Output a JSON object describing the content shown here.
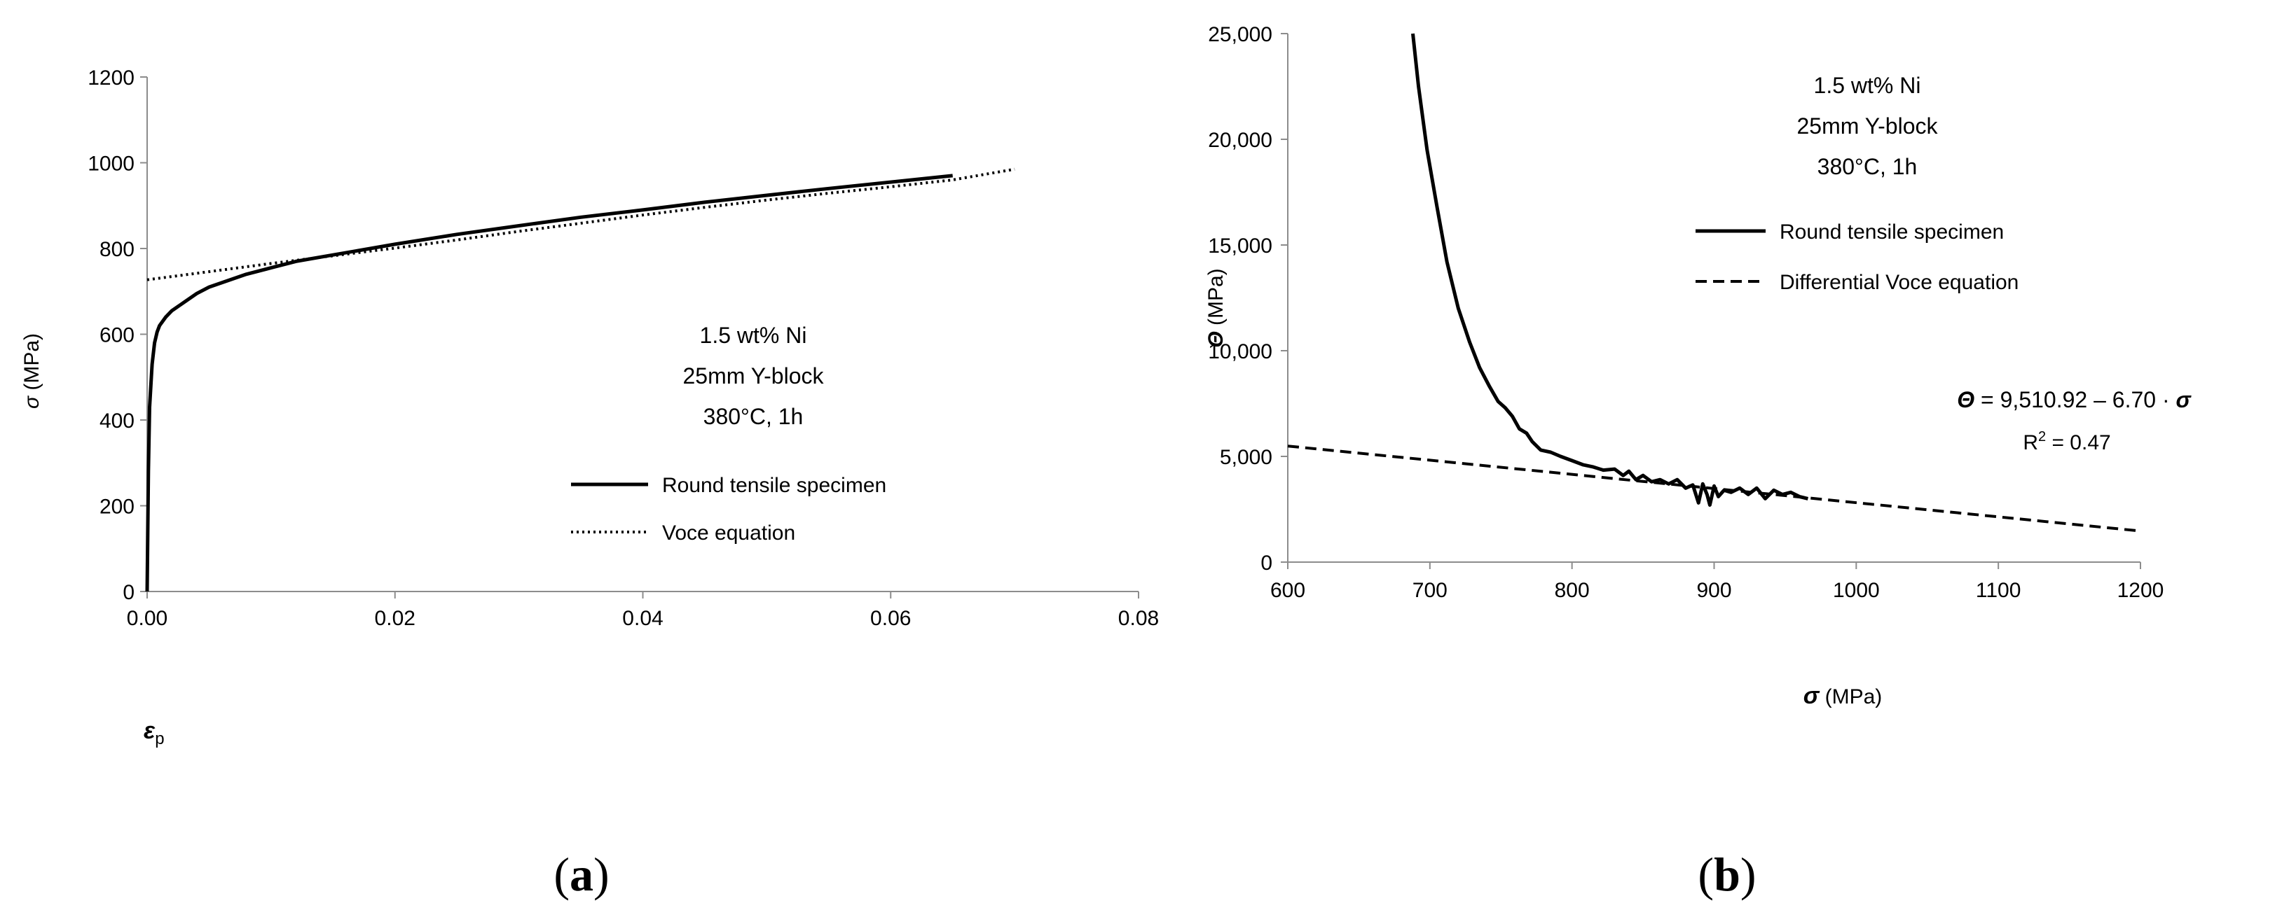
{
  "chart_data": [
    {
      "type": "line",
      "panel_label_open": "(",
      "panel_label_letter": "a",
      "panel_label_close": ")",
      "xlabel_symbol": "ε",
      "xlabel_sub": "p",
      "ylabel_symbol": "σ",
      "ylabel_unit": " (MPa)",
      "xlim": [
        0,
        0.08
      ],
      "ylim": [
        0,
        1200
      ],
      "x_ticks": [
        0,
        0.02,
        0.04,
        0.06,
        0.08
      ],
      "x_tick_labels": [
        "0.00",
        "0.02",
        "0.04",
        "0.06",
        "0.08"
      ],
      "y_ticks": [
        0,
        200,
        400,
        600,
        800,
        1000,
        1200
      ],
      "y_tick_labels": [
        "0",
        "200",
        "400",
        "600",
        "800",
        "1000",
        "1200"
      ],
      "grid": false,
      "annotation": [
        "1.5 wt% Ni",
        "25mm Y-block",
        "380°C, 1h"
      ],
      "legend_position": "bottom-right",
      "series": [
        {
          "name": "Round tensile specimen",
          "style": "solid",
          "x": [
            0,
            0.0001,
            0.0002,
            0.0004,
            0.0006,
            0.0008,
            0.001,
            0.0015,
            0.002,
            0.003,
            0.004,
            0.005,
            0.006,
            0.007,
            0.008,
            0.01,
            0.012,
            0.015,
            0.02,
            0.025,
            0.03,
            0.035,
            0.04,
            0.045,
            0.05,
            0.055,
            0.06,
            0.065
          ],
          "y": [
            0,
            280,
            430,
            530,
            580,
            605,
            620,
            640,
            655,
            675,
            695,
            710,
            720,
            730,
            740,
            755,
            770,
            785,
            810,
            833,
            853,
            873,
            890,
            908,
            924,
            940,
            955,
            970
          ]
        },
        {
          "name": "Voce equation",
          "style": "dotted",
          "x": [
            0,
            0.005,
            0.01,
            0.015,
            0.02,
            0.025,
            0.03,
            0.035,
            0.04,
            0.045,
            0.05,
            0.055,
            0.06,
            0.065,
            0.07
          ],
          "y": [
            727,
            746,
            765,
            783,
            801,
            820,
            840,
            859,
            878,
            896,
            913,
            929,
            944,
            960,
            985
          ]
        }
      ]
    },
    {
      "type": "line",
      "panel_label_open": "(",
      "panel_label_letter": "b",
      "panel_label_close": ")",
      "xlabel_symbol": "σ",
      "xlabel_unit": " (MPa)",
      "ylabel_symbol": "Θ",
      "ylabel_unit": " (MPa)",
      "xlim": [
        600,
        1200
      ],
      "ylim": [
        0,
        25000
      ],
      "x_ticks": [
        600,
        700,
        800,
        900,
        1000,
        1100,
        1200
      ],
      "x_tick_labels": [
        "600",
        "700",
        "800",
        "900",
        "1000",
        "1100",
        "1200"
      ],
      "y_ticks": [
        0,
        5000,
        10000,
        15000,
        20000,
        25000
      ],
      "y_tick_labels": [
        "0",
        "5,000",
        "10,000",
        "15,000",
        "20,000",
        "25,000"
      ],
      "grid": false,
      "annotation": [
        "1.5 wt% Ni",
        "25mm Y-block",
        "380°C, 1h"
      ],
      "equation_symbol": "Θ",
      "equation_text": " = 9,510.92 – 6.70 · ",
      "equation_var": "σ",
      "r2_text": "R",
      "r2_sup": "2",
      "r2_value": " = 0.47",
      "legend_position": "top-right",
      "series": [
        {
          "name": "Round tensile specimen",
          "style": "solid",
          "x": [
            688,
            692,
            698,
            705,
            712,
            720,
            728,
            735,
            742,
            748,
            753,
            758,
            763,
            768,
            772,
            778,
            785,
            792,
            800,
            808,
            815,
            822,
            830,
            836,
            840,
            845,
            850,
            856,
            862,
            868,
            874,
            880,
            885,
            889,
            892,
            895,
            897,
            900,
            903,
            907,
            912,
            918,
            924,
            930,
            936,
            942,
            948,
            954,
            960,
            966
          ],
          "y": [
            25000,
            22500,
            19500,
            16800,
            14200,
            12000,
            10400,
            9200,
            8300,
            7600,
            7300,
            6900,
            6300,
            6100,
            5700,
            5300,
            5200,
            5000,
            4800,
            4600,
            4500,
            4350,
            4400,
            4100,
            4300,
            3900,
            4100,
            3800,
            3900,
            3700,
            3900,
            3500,
            3650,
            2800,
            3700,
            3200,
            2700,
            3600,
            3100,
            3400,
            3300,
            3500,
            3200,
            3500,
            3000,
            3400,
            3200,
            3300,
            3100,
            3000
          ]
        },
        {
          "name": "Differential Voce equation",
          "style": "dashed",
          "x": [
            600,
            1200
          ],
          "y": [
            5490,
            1470
          ]
        }
      ]
    }
  ]
}
